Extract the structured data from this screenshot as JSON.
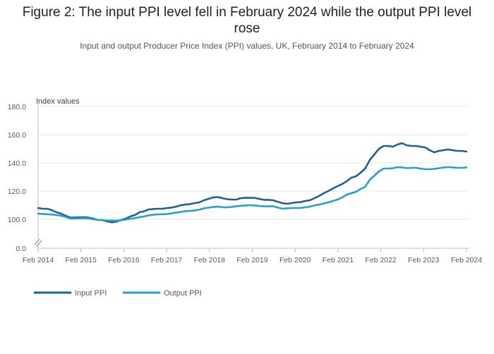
{
  "chart_data": {
    "type": "line",
    "title": "Figure 2: The input PPI level fell in February 2024 while the output PPI level rose",
    "subtitle": "Input and output Producer Price Index (PPI) values, UK, February 2014 to February 2024",
    "ylabel": "Index values",
    "xlabel": "",
    "ylim": [
      0,
      180
    ],
    "y_ticks": [
      "0.0",
      "100.0",
      "120.0",
      "140.0",
      "160.0",
      "180.0"
    ],
    "x_ticks": [
      "Feb 2014",
      "Feb 2015",
      "Feb 2016",
      "Feb 2017",
      "Feb 2018",
      "Feb 2019",
      "Feb 2020",
      "Feb 2021",
      "Feb 2022",
      "Feb 2023",
      "Feb 2024"
    ],
    "axis_break": true,
    "legend_position": "bottom-left",
    "series": [
      {
        "name": "Input PPI",
        "color": "#206095",
        "points": [
          [
            0,
            108
          ],
          [
            0.25,
            107.5
          ],
          [
            0.5,
            107.5
          ],
          [
            0.75,
            106.5
          ],
          [
            1,
            105
          ],
          [
            1.25,
            104
          ],
          [
            1.5,
            102.5
          ],
          [
            1.75,
            101.2
          ],
          [
            2,
            101.3
          ],
          [
            2.25,
            101.4
          ],
          [
            2.5,
            101.5
          ],
          [
            2.75,
            101.2
          ],
          [
            3,
            100.5
          ],
          [
            3.25,
            99.5
          ],
          [
            3.5,
            99.5
          ],
          [
            3.75,
            98.5
          ],
          [
            4,
            97.8
          ],
          [
            4.25,
            98.3
          ],
          [
            4.5,
            99.5
          ],
          [
            4.75,
            100.5
          ],
          [
            5,
            102
          ],
          [
            5.25,
            103
          ],
          [
            5.5,
            105
          ],
          [
            5.75,
            105.7
          ],
          [
            6,
            107
          ],
          [
            6.25,
            107.3
          ],
          [
            6.5,
            107.5
          ],
          [
            6.75,
            107.5
          ],
          [
            7,
            108
          ],
          [
            7.25,
            108.3
          ],
          [
            7.5,
            109
          ],
          [
            7.75,
            110
          ],
          [
            8,
            110.5
          ],
          [
            8.25,
            110.8
          ],
          [
            8.5,
            111.5
          ],
          [
            8.75,
            112
          ],
          [
            9,
            113.5
          ],
          [
            9.25,
            114.5
          ],
          [
            9.5,
            115.5
          ],
          [
            9.75,
            115.8
          ],
          [
            10,
            115
          ],
          [
            10.25,
            114.3
          ],
          [
            10.5,
            114
          ],
          [
            10.75,
            114
          ],
          [
            11,
            115
          ],
          [
            11.25,
            115.3
          ],
          [
            11.5,
            115.2
          ],
          [
            11.75,
            115.2
          ],
          [
            12,
            114.5
          ],
          [
            12.25,
            113.8
          ],
          [
            12.5,
            113.8
          ],
          [
            12.75,
            113.5
          ],
          [
            13,
            112.5
          ],
          [
            13.25,
            111.5
          ],
          [
            13.5,
            111
          ],
          [
            13.75,
            111.5
          ],
          [
            14,
            112
          ],
          [
            14.25,
            112.2
          ],
          [
            14.5,
            113
          ],
          [
            14.75,
            113.5
          ],
          [
            15,
            115
          ],
          [
            15.25,
            116.5
          ],
          [
            15.5,
            118.5
          ],
          [
            15.75,
            120
          ],
          [
            16,
            121.8
          ],
          [
            16.25,
            123.5
          ],
          [
            16.5,
            125
          ],
          [
            16.75,
            127
          ],
          [
            17,
            129.5
          ],
          [
            17.25,
            130.5
          ],
          [
            17.5,
            133
          ],
          [
            17.75,
            136
          ],
          [
            18,
            142
          ],
          [
            18.25,
            146
          ],
          [
            18.5,
            150
          ],
          [
            18.75,
            152
          ],
          [
            19,
            152
          ],
          [
            19.25,
            151.5
          ],
          [
            19.5,
            153
          ],
          [
            19.75,
            154
          ],
          [
            20,
            152.5
          ],
          [
            20.25,
            152
          ],
          [
            20.5,
            152
          ],
          [
            20.75,
            151.5
          ],
          [
            21,
            151
          ],
          [
            21.25,
            149
          ],
          [
            21.5,
            147.5
          ],
          [
            21.75,
            148.5
          ],
          [
            22,
            149
          ],
          [
            22.25,
            149.5
          ],
          [
            22.5,
            149
          ],
          [
            22.75,
            148.5
          ],
          [
            23,
            148.5
          ],
          [
            23.25,
            148
          ]
        ]
      },
      {
        "name": "Output PPI",
        "color": "#27a0cc",
        "points": [
          [
            0,
            104
          ],
          [
            0.25,
            103.8
          ],
          [
            0.5,
            103.6
          ],
          [
            0.75,
            103.4
          ],
          [
            1,
            103
          ],
          [
            1.25,
            102.5
          ],
          [
            1.5,
            101.7
          ],
          [
            1.75,
            100.5
          ],
          [
            2,
            100.5
          ],
          [
            2.25,
            100.7
          ],
          [
            2.5,
            100.8
          ],
          [
            2.75,
            100.6
          ],
          [
            3,
            100
          ],
          [
            3.25,
            99.6
          ],
          [
            3.5,
            99.3
          ],
          [
            3.75,
            99.2
          ],
          [
            4,
            99
          ],
          [
            4.25,
            99.1
          ],
          [
            4.5,
            99.3
          ],
          [
            4.75,
            99.8
          ],
          [
            5,
            100.3
          ],
          [
            5.25,
            100.8
          ],
          [
            5.5,
            101.5
          ],
          [
            5.75,
            102
          ],
          [
            6,
            102.8
          ],
          [
            6.25,
            103.2
          ],
          [
            6.5,
            103.5
          ],
          [
            6.75,
            103.6
          ],
          [
            7,
            103.8
          ],
          [
            7.25,
            104.2
          ],
          [
            7.5,
            104.8
          ],
          [
            7.75,
            105.2
          ],
          [
            8,
            105.8
          ],
          [
            8.25,
            106
          ],
          [
            8.5,
            106.3
          ],
          [
            8.75,
            106.8
          ],
          [
            9,
            107.8
          ],
          [
            9.25,
            108.3
          ],
          [
            9.5,
            108.7
          ],
          [
            9.75,
            109
          ],
          [
            10,
            108.6
          ],
          [
            10.25,
            108.5
          ],
          [
            10.5,
            108.8
          ],
          [
            10.75,
            109.2
          ],
          [
            11,
            109.6
          ],
          [
            11.25,
            109.8
          ],
          [
            11.5,
            110
          ],
          [
            11.75,
            109.8
          ],
          [
            12,
            109.5
          ],
          [
            12.25,
            109.2
          ],
          [
            12.5,
            109.2
          ],
          [
            12.75,
            109.2
          ],
          [
            13,
            108.4
          ],
          [
            13.25,
            107.5
          ],
          [
            13.5,
            107.8
          ],
          [
            13.75,
            108
          ],
          [
            14,
            108
          ],
          [
            14.25,
            108.1
          ],
          [
            14.5,
            108.5
          ],
          [
            14.75,
            109
          ],
          [
            15,
            109.8
          ],
          [
            15.25,
            110.5
          ],
          [
            15.5,
            111.2
          ],
          [
            15.75,
            112
          ],
          [
            16,
            113
          ],
          [
            16.25,
            114
          ],
          [
            16.5,
            115.5
          ],
          [
            16.75,
            117.5
          ],
          [
            17,
            118.5
          ],
          [
            17.25,
            119.5
          ],
          [
            17.5,
            121.5
          ],
          [
            17.75,
            123
          ],
          [
            18,
            128
          ],
          [
            18.25,
            131
          ],
          [
            18.5,
            134
          ],
          [
            18.75,
            136
          ],
          [
            19,
            136
          ],
          [
            19.25,
            136.2
          ],
          [
            19.5,
            137
          ],
          [
            19.75,
            136.8
          ],
          [
            20,
            136.3
          ],
          [
            20.25,
            136.5
          ],
          [
            20.5,
            136.5
          ],
          [
            20.75,
            136
          ],
          [
            21,
            135.5
          ],
          [
            21.25,
            135.5
          ],
          [
            21.5,
            135.8
          ],
          [
            21.75,
            136.2
          ],
          [
            22,
            136.8
          ],
          [
            22.25,
            137
          ],
          [
            22.5,
            136.8
          ],
          [
            22.75,
            136.5
          ],
          [
            23,
            136.5
          ],
          [
            23.25,
            136.8
          ]
        ]
      }
    ]
  }
}
